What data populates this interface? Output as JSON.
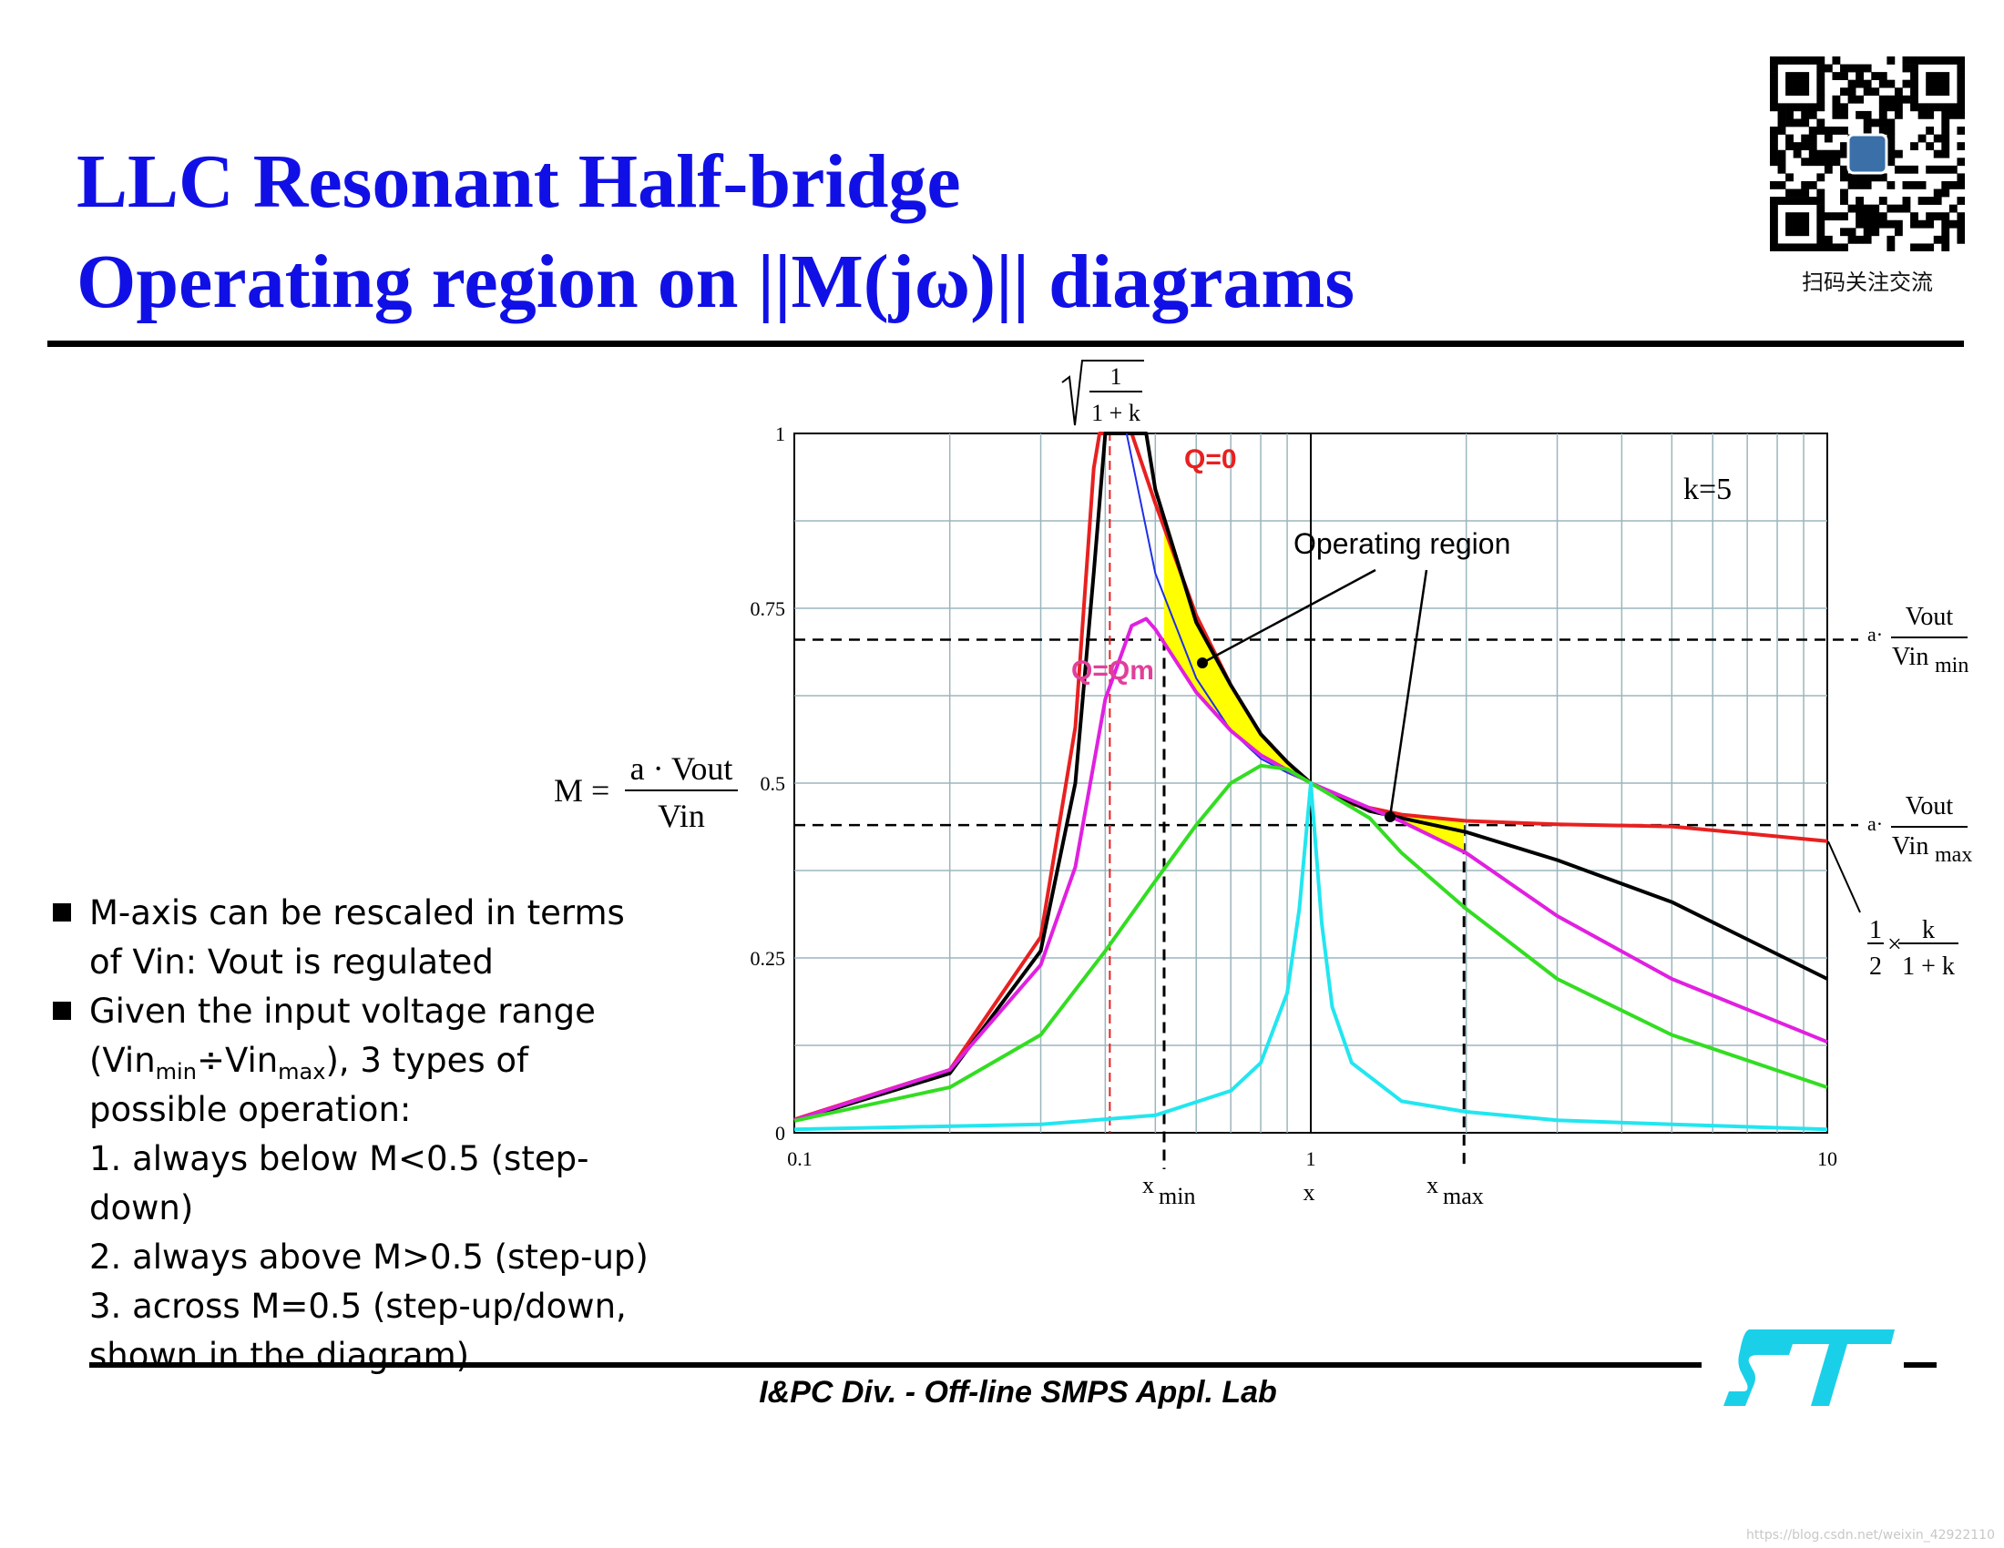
{
  "slide": {
    "title_line1": "LLC Resonant Half-bridge",
    "title_line2": "Operating region on ||M(jω)|| diagrams",
    "qr_caption": "扫码关注交流",
    "footer": "I&PC Div. - Off-line SMPS Appl. Lab",
    "watermark": "https://blog.csdn.net/weixin_42922110",
    "logo": "ST"
  },
  "bullets": {
    "b1_line1": "M-axis can be rescaled in terms",
    "b1_line2": "of Vin: Vout is regulated",
    "b2_line1": "Given the input voltage range",
    "b2_vin_open": "(Vin",
    "b2_min": "min",
    "b2_div": "÷Vin",
    "b2_max": "max",
    "b2_tail": "), 3 types of",
    "b2_line3": "possible operation:",
    "item1": "1. always below M<0.5 (step-down)",
    "item2": "2. always above M>0.5 (step-up)",
    "item3_line1": "3. across M=0.5 (step-up/down,",
    "item3_line2": "shown in the diagram)"
  },
  "annotations": {
    "q0": "Q=0",
    "qm": "Q=Qm",
    "k": "k=5",
    "operating_region": "Operating region",
    "sqrt_num": "1",
    "sqrt_den": "1 + k",
    "m_eq_lhs": "M =",
    "m_eq_num": "a · Vout",
    "m_eq_den": "Vin",
    "vmin_a": "a·",
    "vmin_num": "Vout",
    "vmin_den": "Vin",
    "vmin_sub": "min",
    "vmax_a": "a·",
    "vmax_num": "Vout",
    "vmax_den": "Vin",
    "vmax_sub": "max",
    "half_num": "1",
    "half_den": "2",
    "half_times": "×",
    "k_num": "k",
    "k_den": "1 + k",
    "xmin": "x",
    "xmin_sub": "min",
    "xmax": "x",
    "xmax_sub": "max",
    "x": "x"
  },
  "colors": {
    "title": "#1010e6",
    "grid": "#9bb6bd",
    "q0": "#e82020",
    "black_curve": "#000000",
    "blue_curve": "#1f2fe8",
    "qm": "#e020e0",
    "green": "#33dd22",
    "cyan": "#22e6f0",
    "region": "#ffff00",
    "logo": "#1ad0e8"
  },
  "chart_data": {
    "type": "line",
    "x_scale": "log",
    "xlim": [
      0.1,
      10
    ],
    "ylim": [
      0,
      1
    ],
    "x_ticks": [
      "0.1",
      "1",
      "10"
    ],
    "y_ticks": [
      "0",
      "0.25",
      "0.5",
      "0.75",
      "1"
    ],
    "grid": true,
    "k": 5,
    "series": [
      {
        "name": "Q=0",
        "color": "#e82020",
        "x": [
          0.1,
          0.2,
          0.3,
          0.35,
          0.38,
          0.39,
          0.45,
          0.5,
          0.6,
          0.7,
          0.8,
          0.9,
          1.0,
          1.2,
          1.5,
          2,
          3,
          5,
          10
        ],
        "y": [
          0.019,
          0.09,
          0.28,
          0.58,
          0.95,
          1.0,
          1.0,
          0.9,
          0.74,
          0.64,
          0.57,
          0.53,
          0.5,
          0.47,
          0.455,
          0.446,
          0.441,
          0.438,
          0.417
        ]
      },
      {
        "color": "#000000",
        "x": [
          0.1,
          0.2,
          0.3,
          0.35,
          0.38,
          0.4,
          0.44,
          0.48,
          0.5,
          0.6,
          0.7,
          0.8,
          0.9,
          1.0,
          1.3,
          1.5,
          2,
          3,
          5,
          10
        ],
        "y": [
          0.017,
          0.085,
          0.26,
          0.5,
          0.8,
          1.0,
          1.0,
          1.0,
          0.92,
          0.73,
          0.64,
          0.57,
          0.53,
          0.5,
          0.46,
          0.45,
          0.43,
          0.39,
          0.33,
          0.22
        ]
      },
      {
        "color": "#1f2fe8",
        "x": [
          0.44,
          0.5,
          0.6,
          0.7,
          0.8,
          0.9,
          1.0
        ],
        "y": [
          1.0,
          0.8,
          0.65,
          0.575,
          0.535,
          0.515,
          0.5
        ]
      },
      {
        "name": "Q=Qm",
        "color": "#e020e0",
        "x": [
          0.1,
          0.2,
          0.3,
          0.35,
          0.4,
          0.45,
          0.48,
          0.5,
          0.6,
          0.7,
          0.8,
          1.0,
          1.5,
          2,
          3,
          5,
          10
        ],
        "y": [
          0.018,
          0.09,
          0.24,
          0.38,
          0.62,
          0.725,
          0.735,
          0.72,
          0.63,
          0.575,
          0.54,
          0.5,
          0.445,
          0.4,
          0.31,
          0.22,
          0.13
        ]
      },
      {
        "color": "#33dd22",
        "x": [
          0.1,
          0.2,
          0.3,
          0.4,
          0.5,
          0.6,
          0.7,
          0.8,
          0.9,
          1.0,
          1.3,
          1.5,
          2,
          3,
          5,
          10
        ],
        "y": [
          0.017,
          0.065,
          0.14,
          0.26,
          0.36,
          0.44,
          0.5,
          0.525,
          0.52,
          0.5,
          0.45,
          0.4,
          0.32,
          0.22,
          0.14,
          0.065
        ]
      },
      {
        "color": "#22e6f0",
        "x": [
          0.1,
          0.3,
          0.5,
          0.7,
          0.8,
          0.9,
          0.95,
          1.0,
          1.05,
          1.1,
          1.2,
          1.5,
          2,
          3,
          5,
          10
        ],
        "y": [
          0.005,
          0.012,
          0.025,
          0.06,
          0.1,
          0.2,
          0.32,
          0.5,
          0.3,
          0.18,
          0.1,
          0.045,
          0.03,
          0.018,
          0.012,
          0.005
        ]
      }
    ],
    "reference_lines": {
      "M_at_Vin_min": 0.705,
      "M_at_Vin_max": 0.44,
      "x_sqrt_1_over_1_plus_k": 0.4082,
      "x_min": 0.52,
      "x_max": 1.98,
      "x_1": 1.0
    }
  }
}
